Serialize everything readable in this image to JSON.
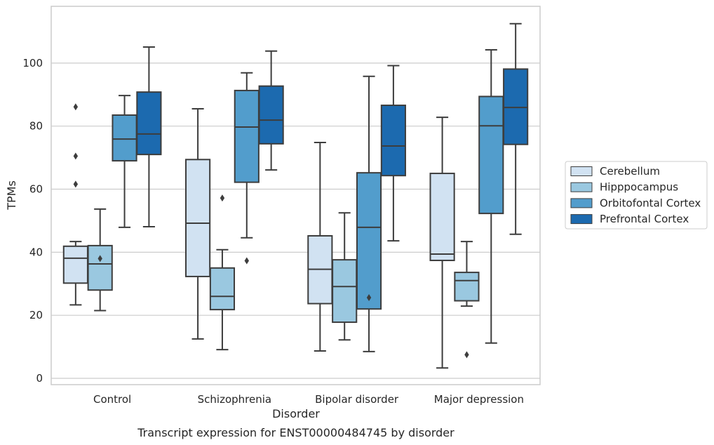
{
  "chart_data": {
    "type": "box",
    "xlabel": "Disorder",
    "ylabel": "TPMs",
    "caption": "Transcript expression for ENST00000484745 by disorder",
    "ylim": [
      -2,
      118
    ],
    "yticks": [
      0,
      20,
      40,
      60,
      80,
      100
    ],
    "grid": "horizontal",
    "legend_placement": "right",
    "categories": [
      "Control",
      "Schizophrenia",
      "Bipolar disorder",
      "Major depression"
    ],
    "series": [
      {
        "name": "Cerebellum",
        "color": "#d1e2f2",
        "boxes": [
          {
            "whislo": 23.3,
            "q1": 30.2,
            "med": 38.1,
            "q3": 41.9,
            "whishi": 43.4,
            "fliers": [
              61.6,
              70.5,
              86.1
            ]
          },
          {
            "whislo": 12.5,
            "q1": 32.3,
            "med": 49.2,
            "q3": 69.4,
            "whishi": 85.5,
            "fliers": []
          },
          {
            "whislo": 8.7,
            "q1": 23.7,
            "med": 34.6,
            "q3": 45.2,
            "whishi": 74.8,
            "fliers": []
          },
          {
            "whislo": 3.3,
            "q1": 37.4,
            "med": 39.4,
            "q3": 65.0,
            "whishi": 82.8,
            "fliers": []
          }
        ]
      },
      {
        "name": "Hipppocampus",
        "color": "#9ac8e0",
        "boxes": [
          {
            "whislo": 21.5,
            "q1": 28.0,
            "med": 36.3,
            "q3": 42.1,
            "whishi": 53.7,
            "fliers": [
              38.0
            ]
          },
          {
            "whislo": 9.1,
            "q1": 21.8,
            "med": 26.0,
            "q3": 35.0,
            "whishi": 40.8,
            "fliers": [
              57.2
            ]
          },
          {
            "whislo": 12.2,
            "q1": 17.8,
            "med": 29.1,
            "q3": 37.6,
            "whishi": 52.5,
            "fliers": []
          },
          {
            "whislo": 22.9,
            "q1": 24.6,
            "med": 31.0,
            "q3": 33.6,
            "whishi": 43.4,
            "fliers": [
              7.5
            ]
          }
        ]
      },
      {
        "name": "Orbitofontal Cortex",
        "color": "#529dcc",
        "boxes": [
          {
            "whislo": 47.9,
            "q1": 69.0,
            "med": 75.9,
            "q3": 83.5,
            "whishi": 89.7,
            "fliers": []
          },
          {
            "whislo": 44.6,
            "q1": 62.2,
            "med": 79.7,
            "q3": 91.3,
            "whishi": 96.9,
            "fliers": [
              37.3
            ]
          },
          {
            "whislo": 8.5,
            "q1": 22.0,
            "med": 47.9,
            "q3": 65.2,
            "whishi": 95.8,
            "fliers": [
              25.6
            ]
          },
          {
            "whislo": 11.2,
            "q1": 52.3,
            "med": 80.1,
            "q3": 89.4,
            "whishi": 104.2,
            "fliers": []
          }
        ]
      },
      {
        "name": "Prefrontal Cortex",
        "color": "#1c6aaf",
        "boxes": [
          {
            "whislo": 48.1,
            "q1": 71.0,
            "med": 77.5,
            "q3": 90.8,
            "whishi": 105.1,
            "fliers": []
          },
          {
            "whislo": 66.1,
            "q1": 74.4,
            "med": 81.9,
            "q3": 92.7,
            "whishi": 103.8,
            "fliers": []
          },
          {
            "whislo": 43.6,
            "q1": 64.3,
            "med": 73.7,
            "q3": 86.6,
            "whishi": 99.2,
            "fliers": []
          },
          {
            "whislo": 45.7,
            "q1": 74.2,
            "med": 85.9,
            "q3": 98.1,
            "whishi": 112.5,
            "fliers": []
          }
        ]
      }
    ]
  }
}
